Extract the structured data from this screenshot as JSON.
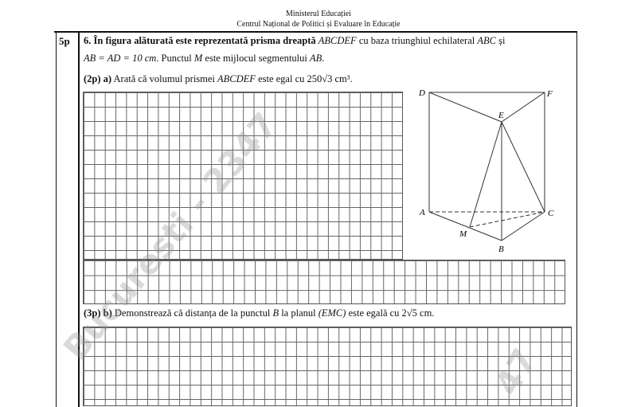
{
  "header": {
    "line1": "Ministerul Educației",
    "line2": "Centrul Național de Politici și Evaluare în Educație"
  },
  "problem": {
    "points": "5p",
    "statement_line1_prefix": "6. În figura alăturată este reprezentată prisma dreaptă ",
    "prism": "ABCDEF",
    "statement_line1_mid": " cu baza triunghiul echilateral ",
    "triangle": "ABC",
    "statement_line1_end": " și",
    "statement_line2": "AB = AD = 10 cm",
    "statement_line2_rest": ". Punctul ",
    "point_m": "M",
    "statement_line2_end": " este mijlocul segmentului ",
    "segment": "AB",
    "period": ".",
    "part_a_points": "(2p)",
    "part_a_label": "a)",
    "part_a_text": " Arată că volumul prismei ",
    "part_a_text2": " este egal cu ",
    "part_a_value": "250√3 cm³",
    "part_b_points": "(3p)",
    "part_b_label": "b)",
    "part_b_text": " Demonstrează că distanța de la punctul ",
    "part_b_point": "B",
    "part_b_text2": " la planul ",
    "part_b_plane": "(EMC)",
    "part_b_text3": " este egală cu ",
    "part_b_value": "2√5 cm"
  },
  "figure": {
    "labels": {
      "A": "A",
      "B": "B",
      "C": "C",
      "D": "D",
      "E": "E",
      "F": "F",
      "M": "M"
    }
  },
  "watermark": {
    "text1": "Bucuresti - 2347",
    "text2": "47"
  }
}
